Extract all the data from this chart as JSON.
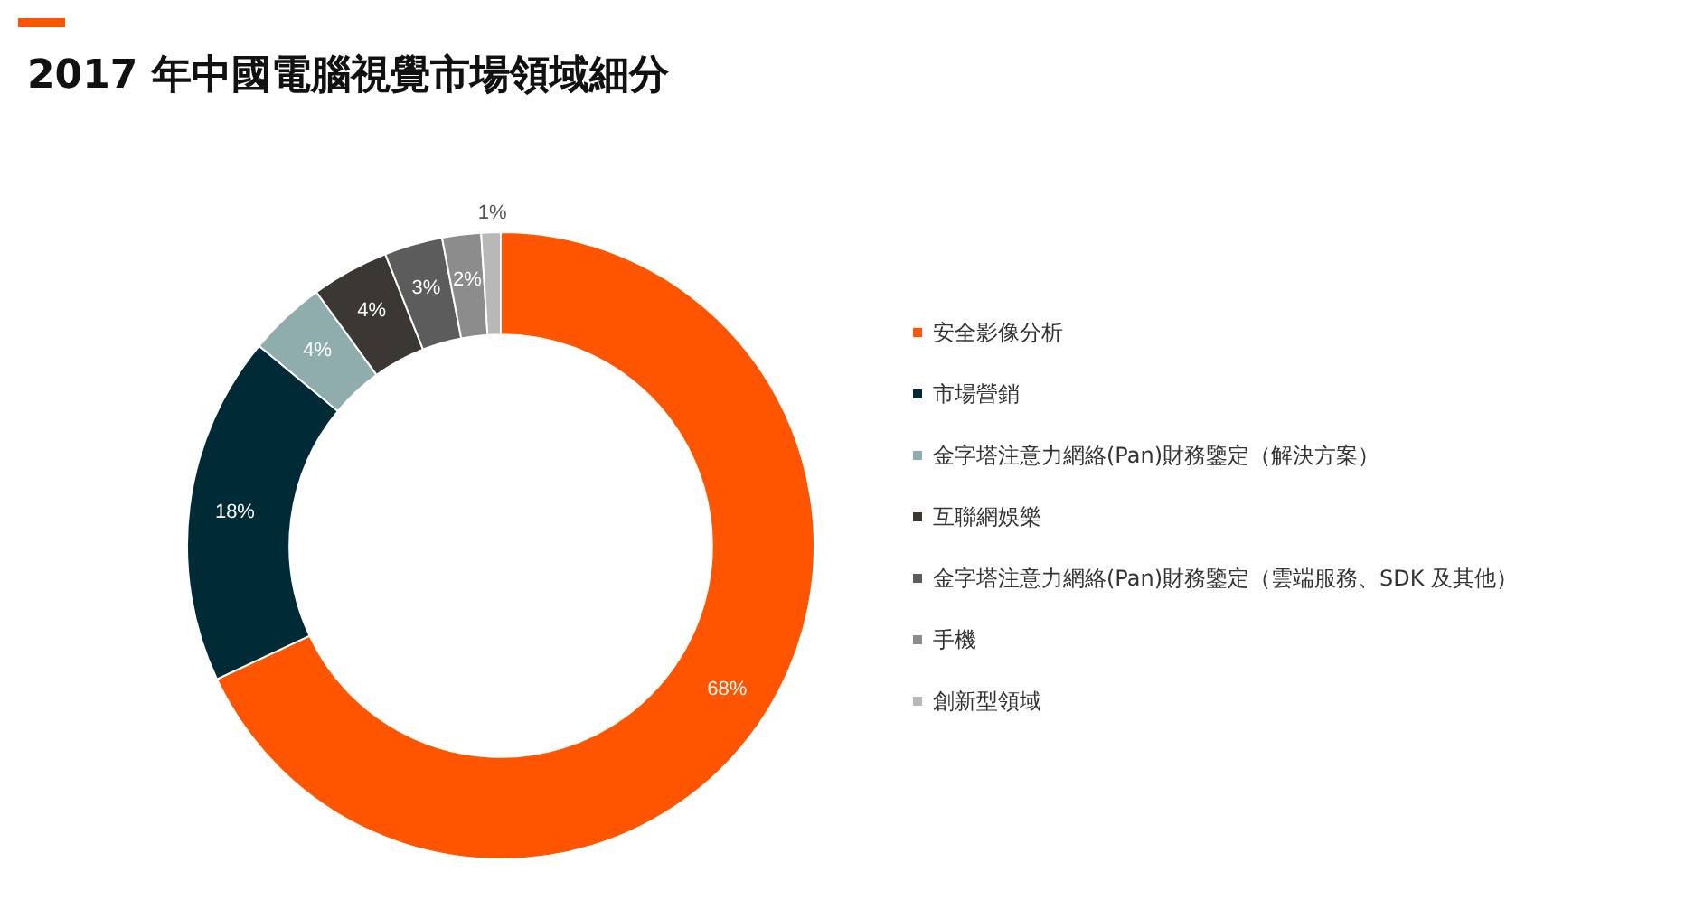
{
  "chart_data": {
    "type": "donut",
    "title": "2017 年中國電腦視覺市場領域細分",
    "categories": [
      "安全影像分析",
      "市場營銷",
      "金字塔注意力網絡(Pan)財務鑒定（解決方案）",
      "互聯網娛樂",
      "金字塔注意力網絡(Pan)財務鑒定（雲端服務、SDK 及其他）",
      "手機",
      "創新型領域"
    ],
    "values": [
      68,
      18,
      4,
      4,
      3,
      2,
      1
    ],
    "value_labels": [
      "68%",
      "18%",
      "4%",
      "4%",
      "3%",
      "2%",
      "1%"
    ],
    "colors": [
      "#ff5500",
      "#002b36",
      "#8fadad",
      "#3b3833",
      "#5c5c5c",
      "#8c8c8c",
      "#b8b8b8"
    ],
    "legend": "right"
  }
}
